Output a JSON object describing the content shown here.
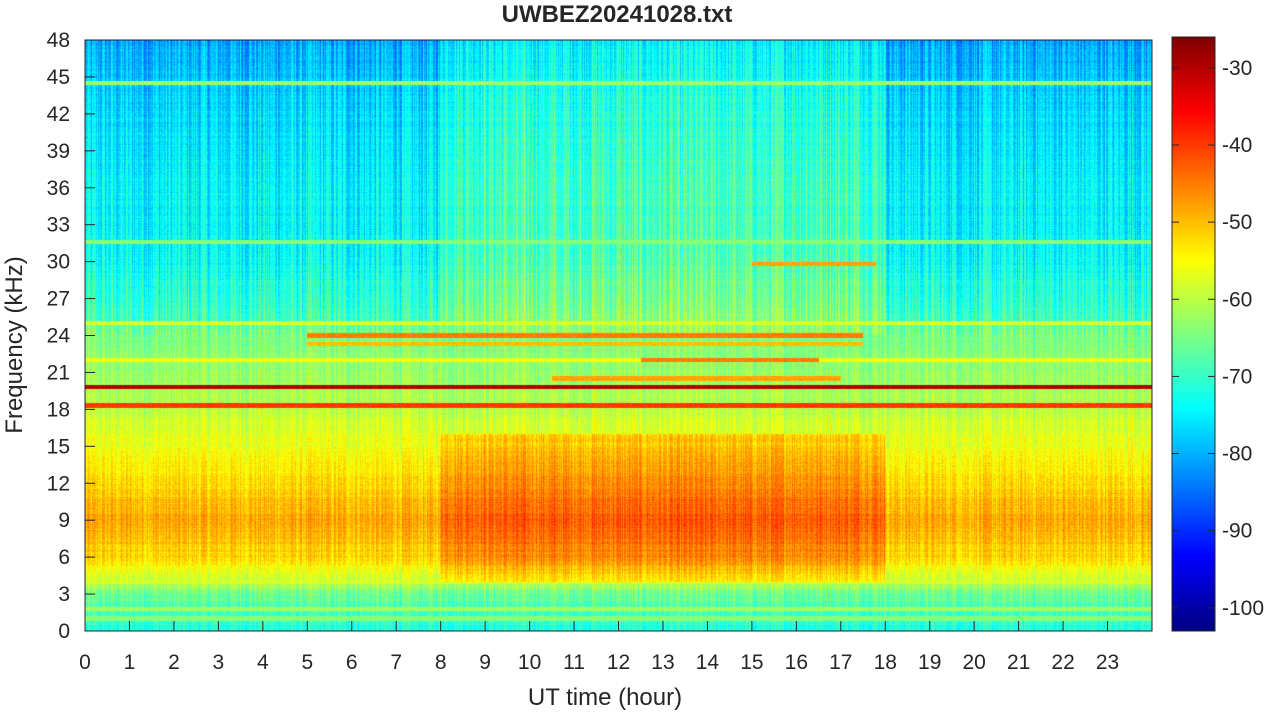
{
  "chart_data": {
    "type": "heatmap",
    "title": "UWBEZ20241028.txt",
    "xlabel": "UT time (hour)",
    "ylabel": "Frequency (kHz)",
    "xlim": [
      0,
      24
    ],
    "ylim": [
      0,
      48
    ],
    "xticks": [
      0,
      1,
      2,
      3,
      4,
      5,
      6,
      7,
      8,
      9,
      10,
      11,
      12,
      13,
      14,
      15,
      16,
      17,
      18,
      19,
      20,
      21,
      22,
      23
    ],
    "xtick_labels": [
      "0",
      "1",
      "2",
      "3",
      "4",
      "5",
      "6",
      "7",
      "8",
      "9",
      "10",
      "11",
      "12",
      "13",
      "14",
      "15",
      "16",
      "17",
      "18",
      "19",
      "20",
      "21",
      "22",
      "23"
    ],
    "yticks": [
      0,
      3,
      6,
      9,
      12,
      15,
      18,
      21,
      24,
      27,
      30,
      33,
      36,
      39,
      42,
      45,
      48
    ],
    "ytick_labels": [
      "0",
      "3",
      "6",
      "9",
      "12",
      "15",
      "18",
      "21",
      "24",
      "27",
      "30",
      "33",
      "36",
      "39",
      "42",
      "45",
      "48"
    ],
    "colormap": "jet",
    "colorbar": {
      "range": [
        -103,
        -26
      ],
      "ticks": [
        -100,
        -90,
        -80,
        -70,
        -60,
        -50,
        -40,
        -30
      ],
      "tick_labels": [
        "-100",
        "-90",
        "-80",
        "-70",
        "-60",
        "-50",
        "-40",
        "-30"
      ]
    },
    "features": {
      "background_by_frequency": [
        [
          0,
          -72
        ],
        [
          3,
          -66
        ],
        [
          4,
          -60
        ],
        [
          6,
          -52
        ],
        [
          9,
          -48
        ],
        [
          12,
          -52
        ],
        [
          15,
          -56
        ],
        [
          18,
          -60
        ],
        [
          21,
          -63
        ],
        [
          24,
          -65
        ],
        [
          27,
          -68
        ],
        [
          30,
          -71
        ],
        [
          36,
          -72
        ],
        [
          42,
          -74
        ],
        [
          48,
          -78
        ]
      ],
      "day_modulation": {
        "enhanced_hours": [
          8,
          18
        ],
        "low_freq_extra_db": 6,
        "high_freq_extra_db": 3
      },
      "narrowband_lines": [
        {
          "freq": 19.8,
          "level": -30,
          "start": 0,
          "end": 24
        },
        {
          "freq": 18.3,
          "level": -40,
          "start": 0,
          "end": 24
        },
        {
          "freq": 44.5,
          "level": -62,
          "start": 0,
          "end": 24
        },
        {
          "freq": 31.6,
          "level": -64,
          "start": 0,
          "end": 24
        },
        {
          "freq": 25.0,
          "level": -58,
          "start": 0,
          "end": 24
        },
        {
          "freq": 22.0,
          "level": -56,
          "start": 0,
          "end": 24
        },
        {
          "freq": 24.0,
          "level": -45,
          "start": 5,
          "end": 17.5
        },
        {
          "freq": 23.3,
          "level": -50,
          "start": 5,
          "end": 17.5
        },
        {
          "freq": 29.8,
          "level": -48,
          "start": 15,
          "end": 17.8
        },
        {
          "freq": 22.0,
          "level": -45,
          "start": 12.5,
          "end": 16.5
        },
        {
          "freq": 20.5,
          "level": -48,
          "start": 10.5,
          "end": 17
        },
        {
          "freq": 4.0,
          "level": -58,
          "start": 0,
          "end": 24
        },
        {
          "freq": 1.8,
          "level": -62,
          "start": 0,
          "end": 24
        },
        {
          "freq": 1.0,
          "level": -64,
          "start": 0,
          "end": 24
        }
      ]
    }
  }
}
